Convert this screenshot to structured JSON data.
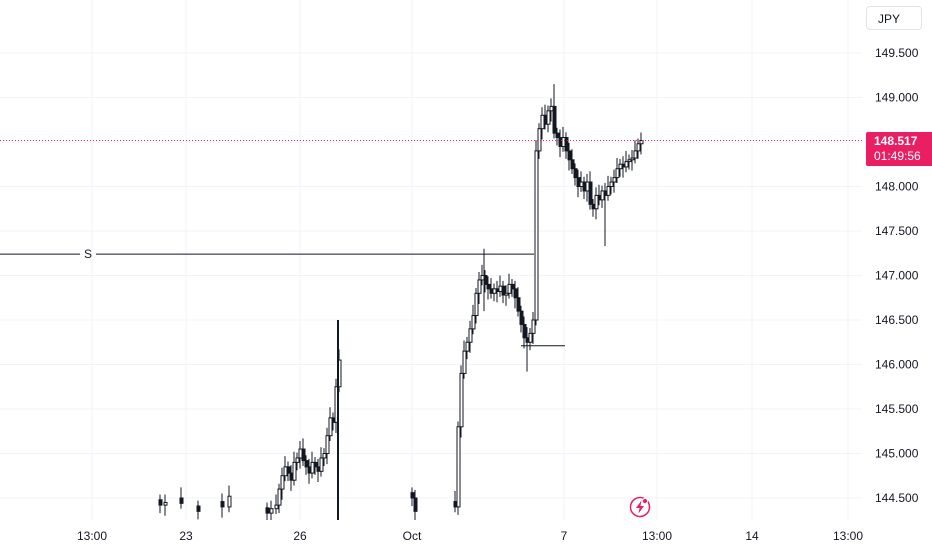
{
  "currency": "JPY",
  "last_price": {
    "value": "148.517",
    "countdown": "01:49:56",
    "price": 148.517,
    "color": "#e91e63"
  },
  "alert_marker": "S",
  "icons": {
    "flash": "lightning-icon"
  },
  "colors": {
    "candle": "#131722",
    "grid": "#f0f3fa",
    "price_line": "#e91e63",
    "text": "#131722"
  },
  "chart_data": {
    "type": "candlestick",
    "symbol_currency": "JPY",
    "ylim": [
      144.2,
      149.9
    ],
    "y_ticks": [
      "149.500",
      "149.000",
      "148.500",
      "148.000",
      "147.500",
      "147.000",
      "146.500",
      "146.000",
      "145.500",
      "145.000",
      "144.500"
    ],
    "x_ticks": [
      "13:00",
      "23",
      "26",
      "Oct",
      "7",
      "13:00",
      "14",
      "13:00"
    ],
    "horizontal_lines": [
      {
        "label": "S",
        "price": 147.24
      },
      {
        "label": "",
        "price": 146.21
      }
    ],
    "close_series": [
      [
        160,
        144.42
      ],
      [
        165,
        144.45
      ],
      [
        181,
        144.44
      ],
      [
        198,
        144.35
      ],
      [
        222,
        144.4
      ],
      [
        229,
        144.52
      ],
      [
        267,
        144.33
      ],
      [
        271,
        144.38
      ],
      [
        276,
        144.42
      ],
      [
        279,
        144.6
      ],
      [
        282,
        144.75
      ],
      [
        285,
        144.85
      ],
      [
        288,
        144.78
      ],
      [
        291,
        144.7
      ],
      [
        294,
        144.9
      ],
      [
        297,
        144.95
      ],
      [
        300,
        145.05
      ],
      [
        303,
        144.92
      ],
      [
        306,
        144.85
      ],
      [
        309,
        144.78
      ],
      [
        312,
        144.9
      ],
      [
        315,
        144.85
      ],
      [
        318,
        144.8
      ],
      [
        321,
        144.95
      ],
      [
        324,
        145.0
      ],
      [
        327,
        145.2
      ],
      [
        330,
        145.4
      ],
      [
        333,
        145.35
      ],
      [
        336,
        145.75
      ],
      [
        339,
        146.05
      ],
      [
        412,
        144.5
      ],
      [
        415,
        144.35
      ],
      [
        455,
        144.4
      ],
      [
        458,
        145.3
      ],
      [
        461,
        145.9
      ],
      [
        464,
        146.15
      ],
      [
        467,
        146.25
      ],
      [
        470,
        146.4
      ],
      [
        473,
        146.55
      ],
      [
        476,
        146.8
      ],
      [
        479,
        146.95
      ],
      [
        482,
        147.0
      ],
      [
        485,
        146.9
      ],
      [
        488,
        146.85
      ],
      [
        491,
        146.8
      ],
      [
        494,
        146.85
      ],
      [
        497,
        146.82
      ],
      [
        500,
        146.88
      ],
      [
        503,
        146.78
      ],
      [
        506,
        146.8
      ],
      [
        509,
        146.9
      ],
      [
        512,
        146.85
      ],
      [
        515,
        146.75
      ],
      [
        518,
        146.6
      ],
      [
        521,
        146.45
      ],
      [
        524,
        146.3
      ],
      [
        527,
        146.25
      ],
      [
        530,
        146.35
      ],
      [
        533,
        146.5
      ],
      [
        536,
        148.4
      ],
      [
        539,
        148.65
      ],
      [
        542,
        148.8
      ],
      [
        545,
        148.7
      ],
      [
        548,
        148.85
      ],
      [
        551,
        148.9
      ],
      [
        554,
        148.6
      ],
      [
        557,
        148.55
      ],
      [
        560,
        148.45
      ],
      [
        563,
        148.55
      ],
      [
        566,
        148.4
      ],
      [
        569,
        148.3
      ],
      [
        572,
        148.2
      ],
      [
        575,
        148.1
      ],
      [
        578,
        148.0
      ],
      [
        581,
        148.05
      ],
      [
        584,
        147.95
      ],
      [
        587,
        148.05
      ],
      [
        590,
        147.8
      ],
      [
        593,
        147.75
      ],
      [
        596,
        147.9
      ],
      [
        599,
        147.85
      ],
      [
        602,
        147.95
      ],
      [
        605,
        147.9
      ],
      [
        608,
        148.0
      ],
      [
        611,
        148.05
      ],
      [
        614,
        148.1
      ],
      [
        617,
        148.2
      ],
      [
        620,
        148.25
      ],
      [
        623,
        148.22
      ],
      [
        626,
        148.28
      ],
      [
        629,
        148.3
      ],
      [
        632,
        148.32
      ],
      [
        635,
        148.4
      ],
      [
        638,
        148.48
      ],
      [
        641,
        148.517
      ]
    ]
  }
}
